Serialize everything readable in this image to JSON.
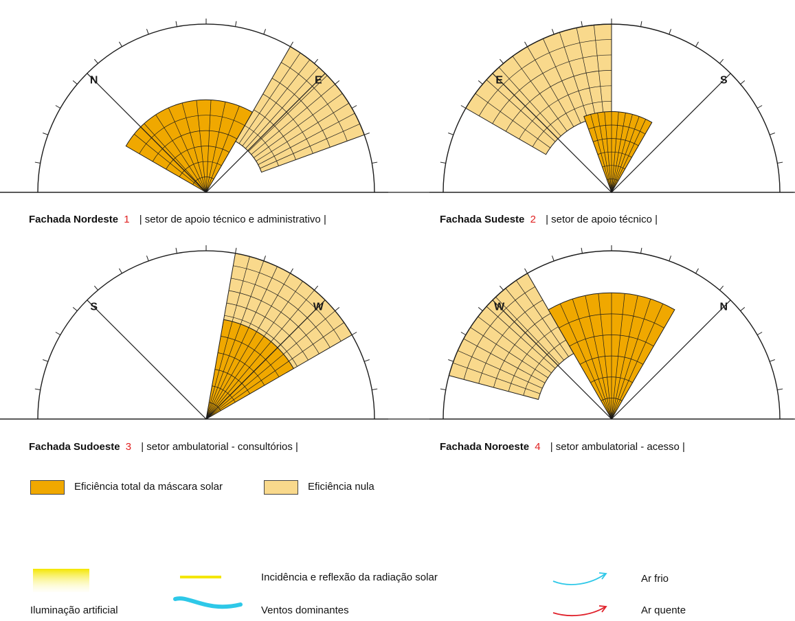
{
  "colors": {
    "full": "#f0a800",
    "null": "#f9d98c",
    "line": "#1a1a1a",
    "number": "#e02020",
    "cold": "#2ec8e8",
    "hot": "#e0202a",
    "yellow": "#f4e600"
  },
  "diagrams": [
    {
      "facade": "Fachada Nordeste",
      "number": "1",
      "sector": "| setor de apoio técnico e administrativo |",
      "labels": {
        "left": "N",
        "right": "E"
      }
    },
    {
      "facade": "Fachada Sudeste",
      "number": "2",
      "sector": "| setor de apoio técnico |",
      "labels": {
        "left": "E",
        "right": "S"
      }
    },
    {
      "facade": "Fachada Sudoeste",
      "number": "3",
      "sector": "| setor ambulatorial - consultórios |",
      "labels": {
        "left": "S",
        "right": "W"
      }
    },
    {
      "facade": "Fachada Noroeste",
      "number": "4",
      "sector": "| setor ambulatorial - acesso |",
      "labels": {
        "left": "W",
        "right": "N"
      }
    }
  ],
  "legend": {
    "full": "Eficiência total da máscara solar",
    "null": "Eficiência nula",
    "artificial": "Iluminação artificial",
    "radiation": "Incidência e reflexão da radiação solar",
    "winds": "Ventos dominantes",
    "cold_air": "Ar frio",
    "hot_air": "Ar quente"
  }
}
